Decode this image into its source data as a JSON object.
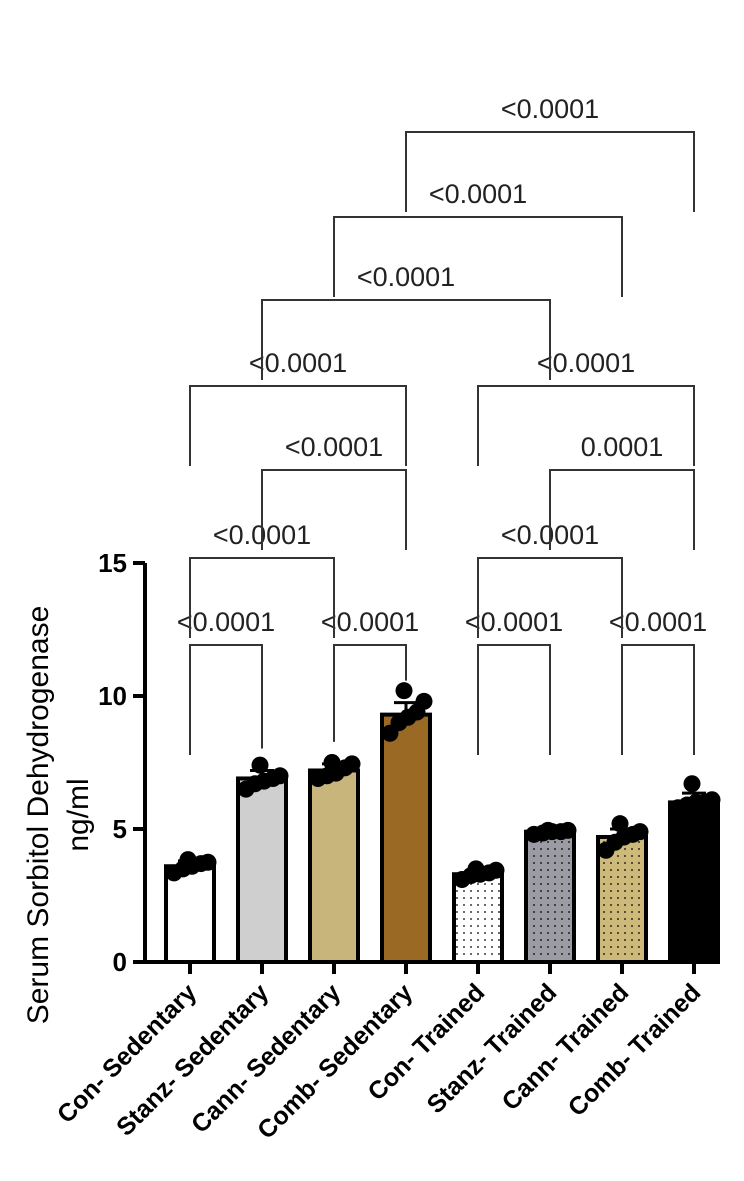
{
  "chart_data": {
    "type": "bar",
    "ylabel_line1": "Serum Sorbitol Dehydrogenase",
    "ylabel_line2": "ng/ml",
    "ylim": [
      0,
      15
    ],
    "yticks": [
      0,
      5,
      10,
      15
    ],
    "categories": [
      "Con- Sedentary",
      "Stanz- Sedentary",
      "Cann- Sedentary",
      "Comb- Sedentary",
      "Con- Trained",
      "Stanz- Trained",
      "Cann- Trained",
      "Comb- Trained"
    ],
    "values": [
      3.6,
      6.9,
      7.2,
      9.3,
      3.3,
      4.9,
      4.7,
      6.0
    ],
    "errors": [
      0.2,
      0.3,
      0.25,
      0.45,
      0.15,
      0.1,
      0.3,
      0.35
    ],
    "points": [
      [
        3.35,
        3.5,
        3.6,
        3.7,
        3.75,
        3.85
      ],
      [
        6.5,
        6.7,
        6.8,
        6.9,
        7.0,
        7.4
      ],
      [
        6.9,
        7.0,
        7.1,
        7.3,
        7.45,
        7.5
      ],
      [
        8.6,
        9.0,
        9.2,
        9.4,
        9.8,
        10.2
      ],
      [
        3.1,
        3.25,
        3.3,
        3.35,
        3.45,
        3.5
      ],
      [
        4.8,
        4.85,
        4.9,
        4.9,
        4.95,
        4.95
      ],
      [
        4.2,
        4.5,
        4.7,
        4.8,
        4.9,
        5.2
      ],
      [
        5.8,
        5.9,
        6.0,
        6.0,
        6.1,
        6.7
      ]
    ],
    "bar_fills": [
      "#ffffff",
      "#cfcfcf",
      "#c8b57c",
      "#9a6a24",
      "#ffffff",
      "#9b9ba3",
      "#cdb97a",
      "#000000"
    ],
    "bar_patterns": [
      "none",
      "none",
      "none",
      "none",
      "dots",
      "dots",
      "dots",
      "none"
    ],
    "comparisons": [
      {
        "a": 0,
        "b": 1,
        "p": "<0.0001"
      },
      {
        "a": 2,
        "b": 3,
        "p": "<0.0001"
      },
      {
        "a": 4,
        "b": 5,
        "p": "<0.0001"
      },
      {
        "a": 6,
        "b": 7,
        "p": "<0.0001"
      },
      {
        "a": 0,
        "b": 2,
        "p": "<0.0001"
      },
      {
        "a": 4,
        "b": 6,
        "p": "<0.0001"
      },
      {
        "a": 1,
        "b": 3,
        "p": "<0.0001"
      },
      {
        "a": 5,
        "b": 7,
        "p": "0.0001"
      },
      {
        "a": 0,
        "b": 3,
        "p": "<0.0001"
      },
      {
        "a": 4,
        "b": 7,
        "p": "<0.0001"
      },
      {
        "a": 1,
        "b": 5,
        "p": "<0.0001"
      },
      {
        "a": 2,
        "b": 6,
        "p": "<0.0001"
      },
      {
        "a": 3,
        "b": 7,
        "p": "<0.0001"
      }
    ],
    "grid": false,
    "legend": "none"
  }
}
